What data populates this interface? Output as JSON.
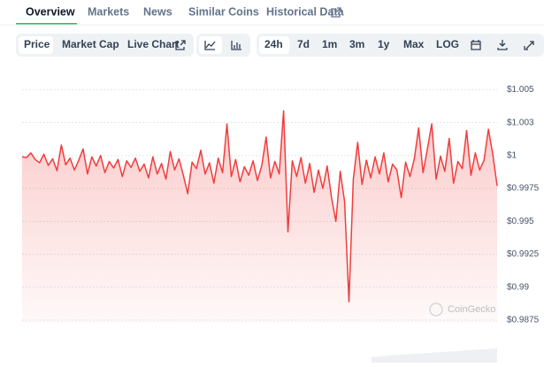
{
  "tabs": [
    "Overview",
    "Markets",
    "News",
    "Similar Coins",
    "Historical Data"
  ],
  "toolbar": {
    "views": [
      "Price",
      "Market Cap",
      "Live Chart"
    ],
    "ranges": [
      "24h",
      "7d",
      "1m",
      "3m",
      "1y",
      "Max",
      "LOG"
    ]
  },
  "chart_data": {
    "type": "area",
    "color": "#f03d3d",
    "grid": true,
    "watermark": "CoinGecko",
    "ylim": [
      0.9873,
      1.0059
    ],
    "yticks": [
      {
        "value": 1.005,
        "label": "$1.005"
      },
      {
        "value": 1.0025,
        "label": "$1.003"
      },
      {
        "value": 1,
        "label": "$1"
      },
      {
        "value": 0.9975,
        "label": "$0.9975"
      },
      {
        "value": 0.995,
        "label": "$0.995"
      },
      {
        "value": 0.9925,
        "label": "$0.9925"
      },
      {
        "value": 0.99,
        "label": "$0.99"
      },
      {
        "value": 0.9875,
        "label": "$0.9875"
      }
    ],
    "values": [
      0.9999,
      0.99985,
      1.0002,
      0.9997,
      0.99945,
      1.0001,
      0.99925,
      0.99975,
      0.99885,
      1.0008,
      0.9993,
      0.9998,
      0.9989,
      0.99965,
      1.0005,
      0.9986,
      0.9999,
      0.9992,
      1.0,
      0.9987,
      0.99955,
      0.99905,
      0.9997,
      0.9984,
      0.9996,
      0.9991,
      0.9998,
      0.9988,
      0.99935,
      0.9983,
      0.9999,
      0.9986,
      0.9994,
      0.9982,
      1.0003,
      0.9989,
      0.99975,
      0.9985,
      0.9971,
      0.9995,
      0.999,
      1.0004,
      0.9986,
      0.99945,
      0.9979,
      0.9998,
      0.9987,
      1.0024,
      0.9984,
      0.9997,
      0.998,
      0.99915,
      0.9985,
      0.9996,
      0.9981,
      0.99925,
      1.0014,
      0.9983,
      0.99955,
      0.9986,
      1.0034,
      0.9942,
      0.9996,
      0.9984,
      0.99985,
      0.9979,
      0.9994,
      0.9972,
      0.9989,
      0.9975,
      0.9992,
      0.9968,
      0.995,
      0.9988,
      0.9965,
      0.9889,
      0.9982,
      1.001,
      0.9978,
      0.99965,
      0.9983,
      0.9999,
      0.9986,
      1.0002,
      0.998,
      0.99935,
      0.9989,
      0.9968,
      0.9995,
      0.9984,
      0.99975,
      1.0021,
      0.9987,
      1.0005,
      1.0024,
      0.9982,
      0.99995,
      0.9988,
      1.0013,
      0.9979,
      0.99955,
      0.999,
      1.0019,
      0.9985,
      1.0002,
      0.9989,
      0.99965,
      1.002,
      1.0001,
      0.9977
    ]
  }
}
